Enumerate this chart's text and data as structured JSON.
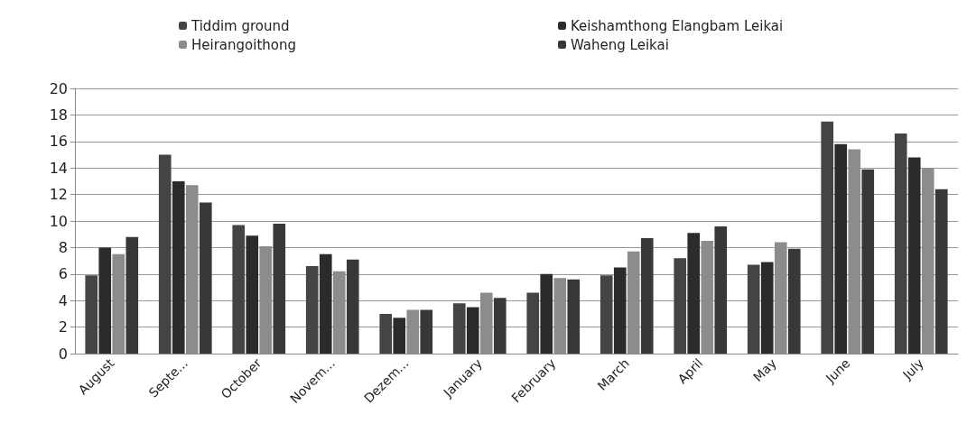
{
  "chart_data": {
    "type": "bar",
    "categories": [
      "August",
      "Septe...",
      "October",
      "Novem...",
      "Dezem...",
      "January",
      "February",
      "March",
      "April",
      "May",
      "June",
      "July"
    ],
    "series": [
      {
        "name": "Tiddim ground",
        "color": "#444444",
        "values": [
          5.9,
          15.0,
          9.7,
          6.6,
          3.0,
          3.8,
          4.6,
          5.9,
          7.2,
          6.7,
          17.5,
          16.6
        ]
      },
      {
        "name": "Keishamthong Elangbam Leikai",
        "color": "#2b2b2b",
        "values": [
          8.0,
          13.0,
          8.9,
          7.5,
          2.7,
          3.5,
          6.0,
          6.5,
          9.1,
          6.9,
          15.8,
          14.8
        ]
      },
      {
        "name": "Heirangoithong",
        "color": "#8c8c8c",
        "values": [
          7.5,
          12.7,
          8.1,
          6.2,
          3.3,
          4.6,
          5.7,
          7.7,
          8.5,
          8.4,
          15.4,
          14.0
        ]
      },
      {
        "name": "Waheng Leikai",
        "color": "#383838",
        "values": [
          8.8,
          11.4,
          9.8,
          7.1,
          3.3,
          4.2,
          5.6,
          8.7,
          9.6,
          7.9,
          13.9,
          12.4
        ]
      }
    ],
    "ylim": [
      0,
      20
    ],
    "yticks": [
      0,
      2,
      4,
      6,
      8,
      10,
      12,
      14,
      16,
      18,
      20
    ],
    "grid": "y",
    "legend": "top"
  }
}
